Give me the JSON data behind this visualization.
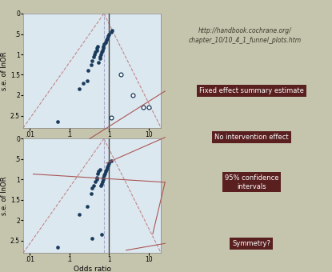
{
  "background_color": "#c5c5ae",
  "plot_bg": "#dce8f0",
  "title_text": "http://handbook.cochrane.org/\nchapter_10/10_4_1_funnel_plots.htm",
  "labels": {
    "fixed_effect": "Fixed effect summary estimate",
    "no_intervention": "No intervention effect",
    "ci_95": "95% confidence\nintervals",
    "symmetry": "Symmetry?"
  },
  "label_box_color": "#5a2020",
  "label_text_color": "white",
  "ylabel": "s.e. of lnOR",
  "xlabel": "Odds ratio",
  "ylim": [
    2.8,
    0.0
  ],
  "xmin": 0.007,
  "xmax": 20.0,
  "solid_dots_top": [
    [
      0.05,
      2.65
    ],
    [
      0.18,
      1.85
    ],
    [
      0.22,
      1.7
    ],
    [
      0.28,
      1.65
    ],
    [
      0.3,
      1.4
    ],
    [
      0.35,
      1.25
    ],
    [
      0.38,
      1.15
    ],
    [
      0.4,
      1.05
    ],
    [
      0.42,
      1.0
    ],
    [
      0.45,
      0.95
    ],
    [
      0.48,
      0.9
    ],
    [
      0.5,
      0.85
    ],
    [
      0.52,
      0.8
    ],
    [
      0.55,
      1.2
    ],
    [
      0.58,
      1.1
    ],
    [
      0.6,
      1.05
    ],
    [
      0.62,
      1.0
    ],
    [
      0.65,
      0.95
    ],
    [
      0.68,
      0.9
    ],
    [
      0.7,
      0.85
    ],
    [
      0.72,
      0.8
    ],
    [
      0.75,
      0.75
    ],
    [
      0.8,
      0.7
    ],
    [
      0.85,
      0.65
    ],
    [
      0.9,
      0.6
    ],
    [
      0.95,
      0.55
    ],
    [
      1.0,
      0.5
    ],
    [
      1.1,
      0.45
    ],
    [
      1.2,
      0.42
    ]
  ],
  "open_dots_top": [
    [
      1.1,
      2.55
    ],
    [
      2.0,
      1.5
    ],
    [
      4.0,
      2.0
    ],
    [
      7.0,
      2.3
    ],
    [
      10.0,
      2.3
    ]
  ],
  "solid_dots_bottom": [
    [
      0.05,
      2.65
    ],
    [
      0.18,
      1.85
    ],
    [
      0.28,
      1.65
    ],
    [
      0.35,
      1.35
    ],
    [
      0.38,
      1.2
    ],
    [
      0.4,
      1.15
    ],
    [
      0.45,
      1.05
    ],
    [
      0.48,
      1.0
    ],
    [
      0.5,
      0.95
    ],
    [
      0.52,
      0.85
    ],
    [
      0.55,
      0.8
    ],
    [
      0.6,
      0.75
    ],
    [
      0.62,
      1.15
    ],
    [
      0.65,
      1.1
    ],
    [
      0.68,
      1.05
    ],
    [
      0.7,
      1.0
    ],
    [
      0.72,
      0.95
    ],
    [
      0.75,
      0.9
    ],
    [
      0.78,
      0.85
    ],
    [
      0.8,
      0.8
    ],
    [
      0.85,
      0.75
    ],
    [
      0.9,
      0.7
    ],
    [
      0.95,
      0.65
    ],
    [
      1.0,
      0.6
    ],
    [
      1.1,
      0.55
    ],
    [
      0.38,
      2.45
    ],
    [
      0.65,
      2.35
    ]
  ],
  "funnel_apex_x": 0.74,
  "funnel_apex_y": 0.0,
  "funnel_base_y": 2.8,
  "funnel_left_x": 0.007,
  "funnel_right_x": 20.0,
  "fixed_x": 0.74,
  "no_effect_x": 1.0,
  "dot_color": "#1a3a5c",
  "open_dot_color": "#1a3a5c",
  "funnel_color": "#c08888",
  "fixed_line_color": "#aaaacc",
  "no_effect_color": "#444444",
  "arrow_color": "#aa5555",
  "xtick_locs": [
    0.01,
    0.1,
    1,
    10
  ],
  "xtick_labels": [
    ".01",
    ".1",
    "1",
    "10"
  ],
  "ytick_locs": [
    0.0,
    0.5,
    1.0,
    1.5,
    2.0,
    2.5
  ],
  "ytick_labels": [
    "0",
    ".5",
    "1",
    "1.5",
    "2",
    "2.5"
  ]
}
